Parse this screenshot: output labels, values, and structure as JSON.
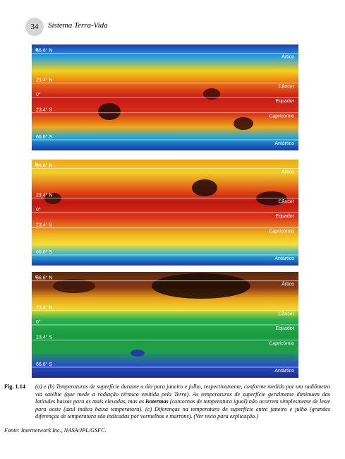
{
  "header": {
    "page_number": "34",
    "running_title": "Sistema Terra-Vida"
  },
  "figures": [
    {
      "label": "a",
      "latitude_labels": [
        "66,6° N",
        "23,4° N",
        "0°",
        "23,4° S",
        "66,6° S"
      ],
      "zone_labels": [
        "Ártico",
        "Câncer",
        "Equador",
        "Capricórnio",
        "Antártico"
      ]
    },
    {
      "label": "b",
      "latitude_labels": [
        "66,6° N",
        "23,4° N",
        "0°",
        "23,4° S",
        "66,6° S"
      ],
      "zone_labels": [
        "Ártico",
        "Câncer",
        "Equador",
        "Capricórnio",
        "Antártico"
      ]
    },
    {
      "label": "c",
      "latitude_labels": [
        "66,6° N",
        "23,4° N",
        "0°",
        "23,4° S",
        "66,6° S"
      ],
      "zone_labels": [
        "Ártico",
        "Câncer",
        "Equador",
        "Capricórnio",
        "Antártico"
      ]
    }
  ],
  "caption": {
    "label": "Fig. 1.14",
    "text_before": "(a) e (b) Temperaturas de superfície durante o dia para janeiro e julho, respectivamente, conforme medido por um radiômetro via satélite (que mede a radiação térmica emitida pela Terra). As temperaturas de superfície geralmente diminuem das latitudes baixas para as mais elevadas, mas as",
    "bold": "isotermas",
    "text_after": "(contornos de temperatura igual) não ocorrem simplesmente de leste para oeste (azul indica baixa temperatura). (c) Diferenças na temperatura de superfície entre janeiro e julho (grandes diferenças de temperatura são indicadas por vermelhos e marrons). (Ver texto para explicação.)"
  },
  "source": "Fonte: Internetwork Inc., NASA/JPL/GSFC."
}
